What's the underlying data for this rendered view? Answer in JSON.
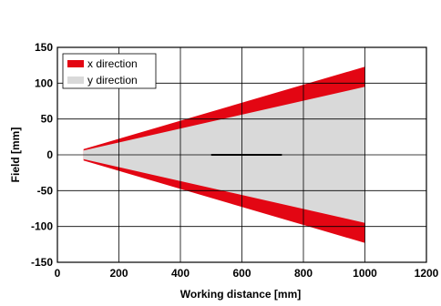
{
  "chart_data": {
    "type": "area",
    "title": "",
    "xlabel": "Working distance [mm]",
    "ylabel": "Field [mm]",
    "xlim": [
      0,
      1200
    ],
    "ylim": [
      -150,
      150
    ],
    "x_ticks": [
      "0",
      "200",
      "400",
      "600",
      "800",
      "1000",
      "1200"
    ],
    "y_ticks": [
      "150",
      "100",
      "50",
      "0",
      "-50",
      "-100",
      "-150"
    ],
    "grid": true,
    "legend_position": "top-left",
    "series": [
      {
        "name": "x direction",
        "color": "#e30613",
        "x": [
          85,
          1000
        ],
        "upper": [
          8,
          123
        ],
        "lower": [
          -8,
          -123
        ]
      },
      {
        "name": "y direction",
        "color": "#d9d9d9",
        "x": [
          85,
          1000
        ],
        "upper": [
          6,
          95
        ],
        "lower": [
          -6,
          -95
        ]
      }
    ],
    "annotation_line": {
      "x": [
        500,
        730
      ],
      "y": [
        0,
        0
      ],
      "color": "#000000"
    }
  }
}
